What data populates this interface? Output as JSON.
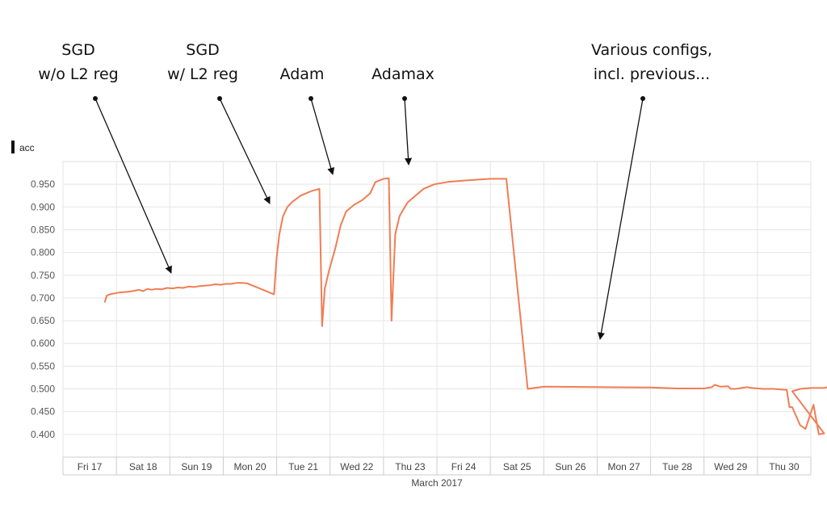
{
  "chart_data": {
    "type": "line",
    "ylabel": "acc",
    "xlabel": "March 2017",
    "ylim": [
      0.35,
      1.0
    ],
    "yticks": [
      "0.950",
      "0.900",
      "0.850",
      "0.800",
      "0.750",
      "0.700",
      "0.650",
      "0.600",
      "0.550",
      "0.500",
      "0.450",
      "0.400"
    ],
    "categories": [
      "Fri 17",
      "Sat 18",
      "Sun 19",
      "Mon 20",
      "Tue 21",
      "Wed 22",
      "Thu 23",
      "Fri 24",
      "Sat 25",
      "Sun 26",
      "Mon 27",
      "Tue 28",
      "Wed 29",
      "Thu 30"
    ],
    "grid": true,
    "line_color": "#f07d55",
    "series": [
      {
        "points": [
          [
            0.78,
            0.69
          ],
          [
            0.82,
            0.705
          ],
          [
            0.88,
            0.708
          ],
          [
            0.96,
            0.71
          ],
          [
            1.05,
            0.712
          ],
          [
            1.15,
            0.713
          ],
          [
            1.25,
            0.714
          ],
          [
            1.35,
            0.716
          ],
          [
            1.42,
            0.718
          ],
          [
            1.5,
            0.715
          ],
          [
            1.58,
            0.72
          ],
          [
            1.66,
            0.718
          ],
          [
            1.75,
            0.72
          ],
          [
            1.85,
            0.719
          ],
          [
            1.95,
            0.722
          ],
          [
            2.05,
            0.721
          ],
          [
            2.15,
            0.723
          ],
          [
            2.25,
            0.722
          ],
          [
            2.35,
            0.725
          ],
          [
            2.45,
            0.724
          ],
          [
            2.55,
            0.726
          ],
          [
            2.65,
            0.727
          ],
          [
            2.75,
            0.728
          ],
          [
            2.85,
            0.73
          ],
          [
            2.95,
            0.729
          ],
          [
            3.05,
            0.731
          ],
          [
            3.15,
            0.731
          ],
          [
            3.25,
            0.733
          ],
          [
            3.35,
            0.733
          ],
          [
            3.45,
            0.732
          ],
          [
            3.95,
            0.708
          ],
          [
            4.0,
            0.79
          ],
          [
            4.05,
            0.84
          ],
          [
            4.12,
            0.88
          ],
          [
            4.2,
            0.9
          ],
          [
            4.3,
            0.912
          ],
          [
            4.45,
            0.925
          ],
          [
            4.65,
            0.935
          ],
          [
            4.8,
            0.94
          ],
          [
            4.85,
            0.638
          ],
          [
            4.9,
            0.72
          ],
          [
            4.98,
            0.76
          ],
          [
            5.1,
            0.81
          ],
          [
            5.2,
            0.86
          ],
          [
            5.3,
            0.89
          ],
          [
            5.45,
            0.905
          ],
          [
            5.6,
            0.915
          ],
          [
            5.75,
            0.93
          ],
          [
            5.85,
            0.955
          ],
          [
            6.0,
            0.962
          ],
          [
            6.1,
            0.963
          ],
          [
            6.15,
            0.65
          ],
          [
            6.22,
            0.84
          ],
          [
            6.3,
            0.88
          ],
          [
            6.45,
            0.91
          ],
          [
            6.6,
            0.925
          ],
          [
            6.75,
            0.94
          ],
          [
            6.95,
            0.95
          ],
          [
            7.2,
            0.955
          ],
          [
            7.5,
            0.958
          ],
          [
            7.75,
            0.96
          ],
          [
            8.0,
            0.962
          ],
          [
            8.2,
            0.962
          ],
          [
            8.3,
            0.962
          ],
          [
            8.7,
            0.5
          ],
          [
            9.0,
            0.505
          ],
          [
            10.0,
            0.504
          ],
          [
            11.0,
            0.503
          ],
          [
            11.5,
            0.501
          ],
          [
            12.0,
            0.501
          ],
          [
            12.15,
            0.504
          ],
          [
            12.2,
            0.509
          ],
          [
            12.3,
            0.505
          ],
          [
            12.45,
            0.506
          ],
          [
            12.5,
            0.5
          ],
          [
            12.6,
            0.5
          ],
          [
            12.7,
            0.502
          ],
          [
            12.8,
            0.504
          ],
          [
            12.9,
            0.502
          ],
          [
            13.1,
            0.5
          ],
          [
            13.3,
            0.5
          ],
          [
            13.55,
            0.498
          ],
          [
            13.6,
            0.46
          ],
          [
            13.65,
            0.46
          ],
          [
            13.8,
            0.42
          ],
          [
            13.9,
            0.412
          ],
          [
            14.05,
            0.465
          ],
          [
            14.15,
            0.4
          ],
          [
            14.25,
            0.402
          ],
          [
            13.65,
            0.495
          ],
          [
            13.8,
            0.5
          ],
          [
            14.0,
            0.502
          ],
          [
            14.25,
            0.502
          ],
          [
            14.4,
            0.507
          ]
        ]
      }
    ]
  },
  "annotations": [
    {
      "lines": [
        "SGD",
        "w/o L2 reg"
      ]
    },
    {
      "lines": [
        "SGD",
        "w/ L2 reg"
      ]
    },
    {
      "lines": [
        "Adam"
      ]
    },
    {
      "lines": [
        "Adamax"
      ]
    },
    {
      "lines": [
        "Various configs,",
        "incl. previous..."
      ]
    }
  ]
}
